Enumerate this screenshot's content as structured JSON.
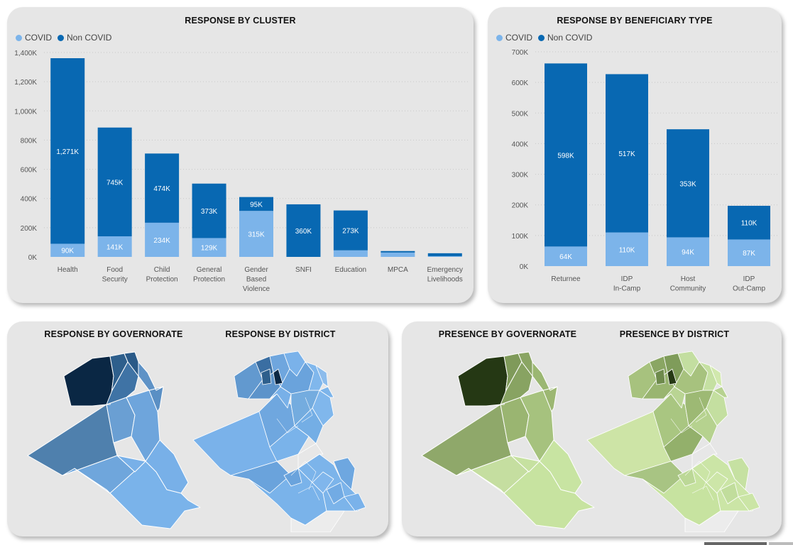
{
  "colors": {
    "covid": "#7cb4ea",
    "non_covid": "#0868b2"
  },
  "legend": {
    "covid": "COVID",
    "non_covid": "Non COVID"
  },
  "panels": {
    "cluster_title": "RESPONSE BY CLUSTER",
    "beneficiary_title": "RESPONSE BY BENEFICIARY TYPE",
    "resp_gov_title": "RESPONSE BY GOVERNORATE",
    "resp_dist_title": "RESPONSE BY DISTRICT",
    "pres_gov_title": "PRESENCE BY GOVERNORATE",
    "pres_dist_title": "PRESENCE BY DISTRICT"
  },
  "chart_data": [
    {
      "type": "bar",
      "stacked": true,
      "title": "RESPONSE BY CLUSTER",
      "categories": [
        "Health",
        "Food Security",
        "Child Protection",
        "General Protection",
        "Gender Based Violence",
        "SNFI",
        "Education",
        "MPCA",
        "Emergency Livelihoods"
      ],
      "series": [
        {
          "name": "COVID",
          "values": [
            90000,
            141000,
            234000,
            129000,
            315000,
            0,
            45000,
            30000,
            5000
          ],
          "labels": [
            "90K",
            "141K",
            "234K",
            "129K",
            "315K",
            "",
            "",
            "",
            ""
          ]
        },
        {
          "name": "Non COVID",
          "values": [
            1271000,
            745000,
            474000,
            373000,
            95000,
            360000,
            273000,
            10000,
            20000
          ],
          "labels": [
            "1,271K",
            "745K",
            "474K",
            "373K",
            "95K",
            "360K",
            "273K",
            "",
            ""
          ]
        }
      ],
      "yticks": [
        "0K",
        "200K",
        "400K",
        "600K",
        "800K",
        "1,000K",
        "1,200K",
        "1,400K"
      ],
      "ylim": [
        0,
        1400000
      ],
      "grid": true,
      "legend": "top-left"
    },
    {
      "type": "bar",
      "stacked": true,
      "title": "RESPONSE BY BENEFICIARY TYPE",
      "categories": [
        "Returnee",
        "IDP In-Camp",
        "Host Community",
        "IDP Out-Camp"
      ],
      "series": [
        {
          "name": "COVID",
          "values": [
            64000,
            110000,
            94000,
            87000
          ],
          "labels": [
            "64K",
            "110K",
            "94K",
            "87K"
          ]
        },
        {
          "name": "Non COVID",
          "values": [
            598000,
            517000,
            353000,
            110000
          ],
          "labels": [
            "598K",
            "517K",
            "353K",
            "110K"
          ]
        }
      ],
      "yticks": [
        "0K",
        "100K",
        "200K",
        "300K",
        "400K",
        "500K",
        "600K",
        "700K"
      ],
      "ylim": [
        0,
        700000
      ],
      "grid": true,
      "legend": "top-left"
    }
  ]
}
